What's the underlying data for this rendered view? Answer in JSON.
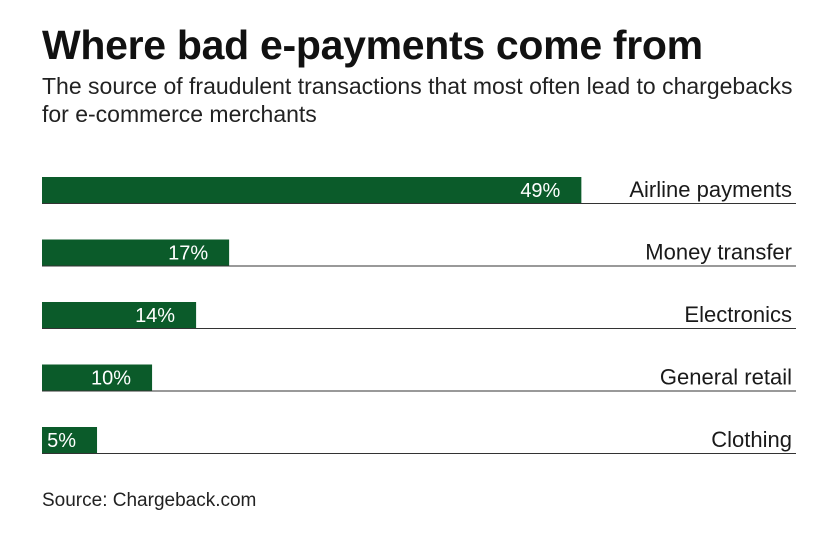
{
  "chart_data": {
    "type": "bar",
    "orientation": "horizontal",
    "title": "Where bad e-payments come from",
    "subtitle": "The source of fraudulent transactions that most often lead to chargebacks for e-commerce merchants",
    "categories": [
      "Airline payments",
      "Money transfer",
      "Electronics",
      "General retail",
      "Clothing"
    ],
    "values": [
      49,
      17,
      14,
      10,
      5
    ],
    "value_labels": [
      "49%",
      "17%",
      "14%",
      "10%",
      "5%"
    ],
    "unit": "%",
    "xlim": [
      0,
      68.5
    ],
    "bar_color": "#0b5b2a",
    "axis_line_color": "#333333",
    "grid": false,
    "legend": "none",
    "source": "Source: Chargeback.com"
  }
}
